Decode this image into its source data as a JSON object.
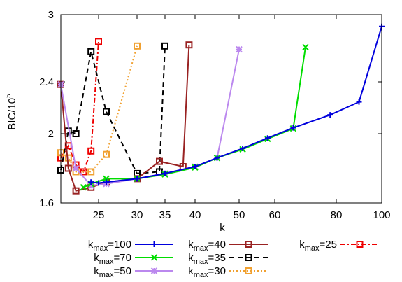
{
  "chart_data": {
    "type": "line",
    "xlabel": "k",
    "ylabel": "BIC/10",
    "ylabel_exponent": "5",
    "y_ticks": [
      1.6,
      2,
      2.4,
      3
    ],
    "x_ticks": [
      25,
      30,
      35,
      40,
      50,
      60,
      80,
      100
    ],
    "grid": false,
    "legend_position": "bottom",
    "series": [
      {
        "name_main": "k",
        "name_sub": "max",
        "name_value": "=100",
        "color": "#0000dd",
        "marker": "plus",
        "dash": "solid",
        "x": [
          24,
          25,
          26,
          30,
          35,
          40,
          45,
          51,
          58,
          66,
          78,
          90,
          100
        ],
        "y": [
          1.72,
          1.715,
          1.72,
          1.74,
          1.77,
          1.81,
          1.86,
          1.915,
          1.975,
          2.045,
          2.145,
          2.245,
          2.895
        ]
      },
      {
        "name_main": "k",
        "name_sub": "max",
        "name_value": "=70",
        "color": "#00dd00",
        "marker": "cross",
        "dash": "solid",
        "x": [
          23,
          24,
          26,
          30,
          35,
          40,
          45,
          51,
          58,
          66,
          70
        ],
        "y": [
          1.69,
          1.71,
          1.74,
          1.74,
          1.765,
          1.805,
          1.86,
          1.91,
          1.97,
          2.04,
          2.71
        ]
      },
      {
        "name_main": "k",
        "name_sub": "max",
        "name_value": "=50",
        "color": "#bb88ee",
        "marker": "star",
        "dash": "solid",
        "x": [
          20,
          22,
          24,
          26,
          30,
          35,
          40,
          45,
          50
        ],
        "y": [
          2.38,
          1.8,
          1.7,
          1.71,
          1.74,
          1.77,
          1.81,
          1.86,
          2.69
        ]
      },
      {
        "name_main": "k",
        "name_sub": "max",
        "name_value": "=40",
        "color": "#992222",
        "marker": "square",
        "dash": "solid",
        "x": [
          20,
          21,
          22,
          24,
          26,
          30,
          34,
          38,
          39
        ],
        "y": [
          2.38,
          1.8,
          1.67,
          1.69,
          1.72,
          1.74,
          1.84,
          1.81,
          2.73
        ]
      },
      {
        "name_main": "k",
        "name_sub": "max",
        "name_value": "=35",
        "color": "#000000",
        "marker": "square",
        "dash": "dashed",
        "x": [
          20,
          21,
          22,
          24,
          26,
          30,
          34,
          35
        ],
        "y": [
          1.79,
          2.02,
          2.0,
          2.67,
          2.17,
          1.77,
          1.78,
          2.72
        ]
      },
      {
        "name_main": "k",
        "name_sub": "max",
        "name_value": "=30",
        "color": "#f0a030",
        "marker": "square",
        "dash": "dotted",
        "x": [
          20,
          21,
          22,
          24,
          26,
          30
        ],
        "y": [
          1.89,
          1.86,
          1.78,
          1.78,
          1.88,
          2.72
        ]
      },
      {
        "name_main": "k",
        "name_sub": "max",
        "name_value": "=25",
        "color": "#ee0000",
        "marker": "square",
        "dash": "dashdot",
        "x": [
          20,
          21,
          22,
          23,
          24,
          25
        ],
        "y": [
          1.86,
          1.93,
          1.82,
          1.78,
          1.9,
          2.76
        ]
      }
    ]
  }
}
